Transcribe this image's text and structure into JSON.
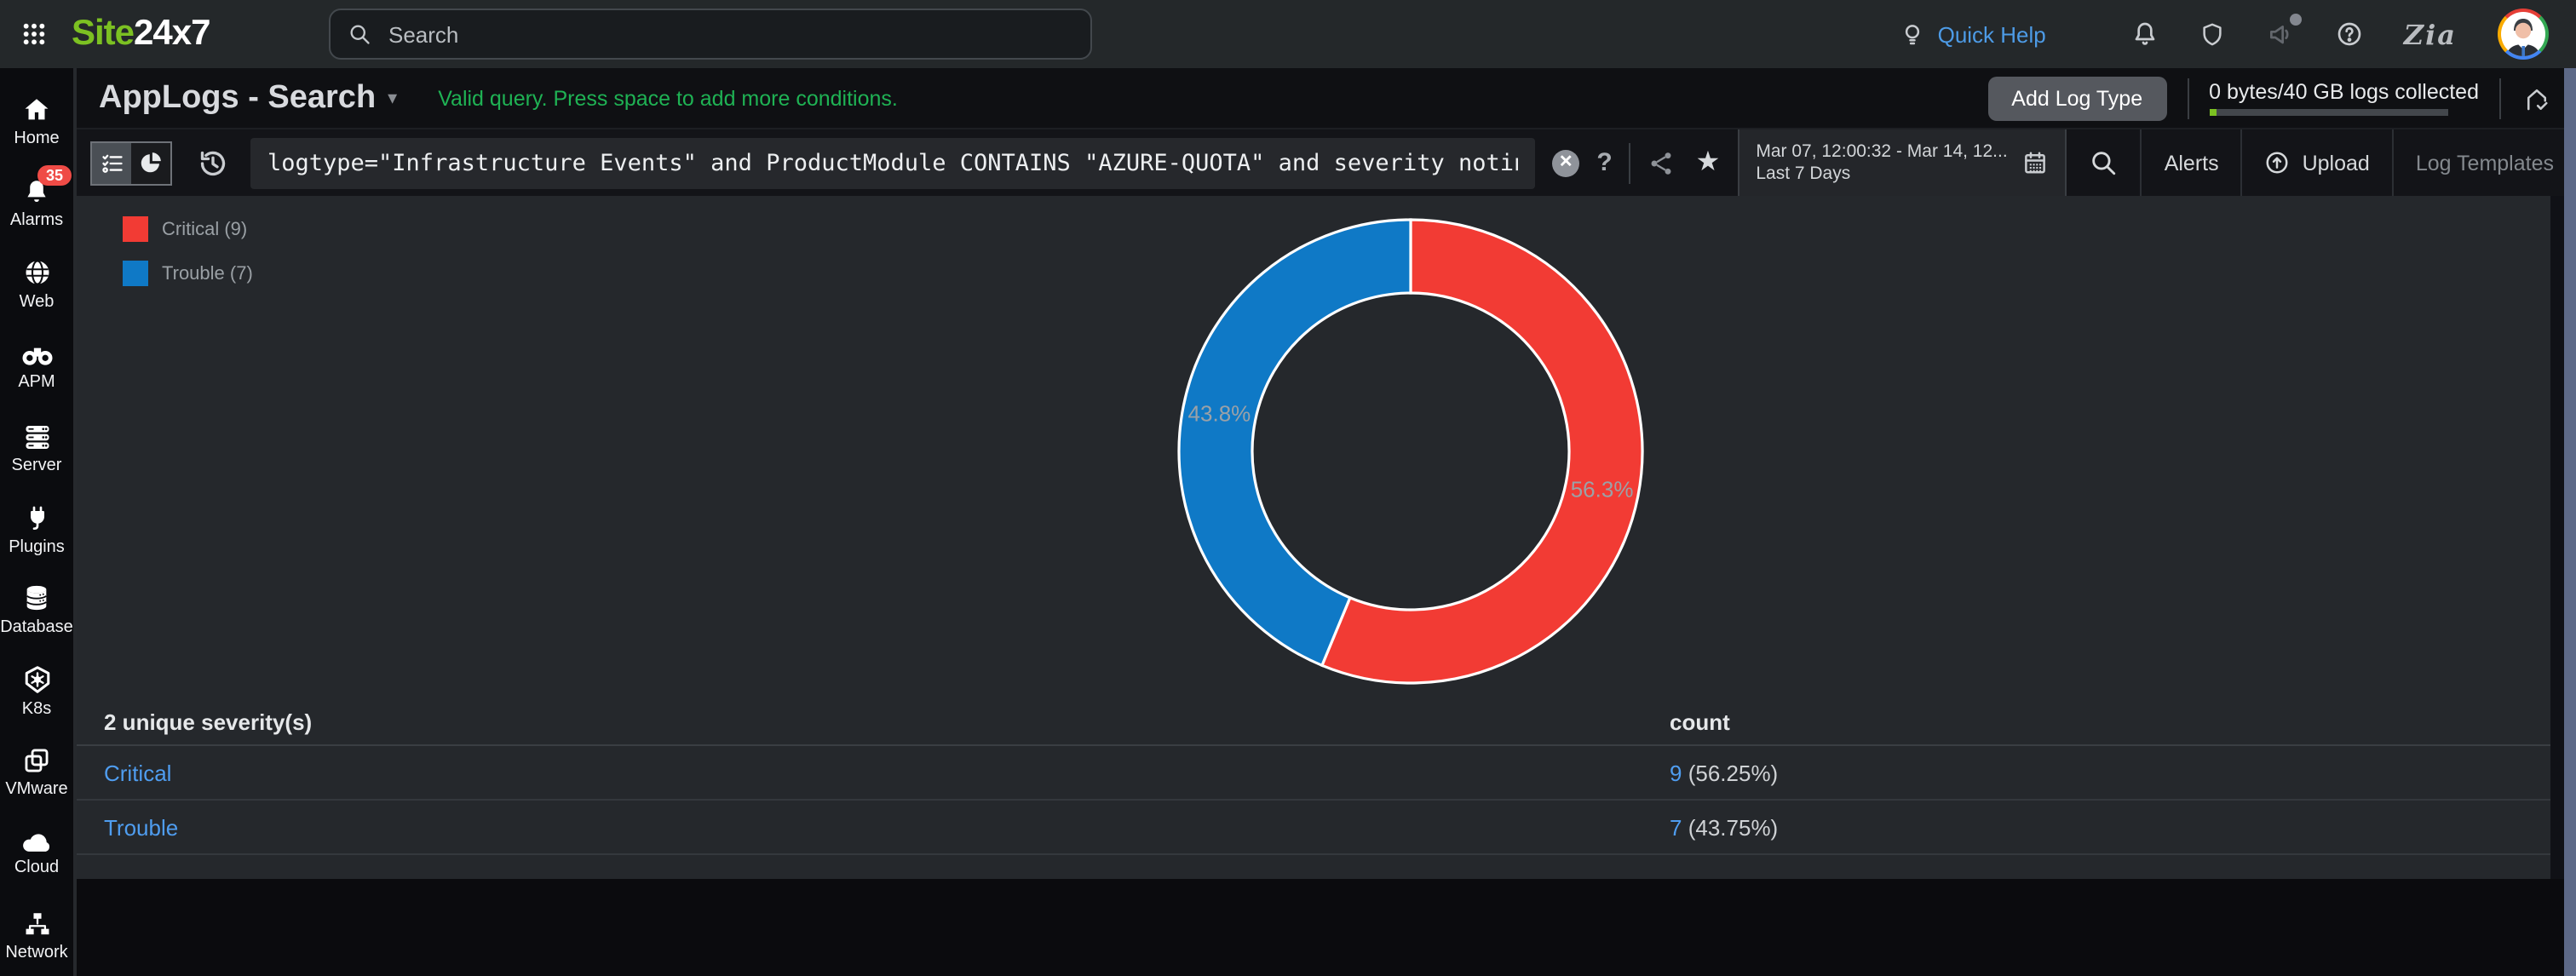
{
  "colors": {
    "accent_green": "#7cc122",
    "status_green": "#1fb254",
    "link_blue": "#4f9df0",
    "quickhelp_blue": "#4d9be6",
    "critical_red": "#f23b34",
    "trouble_blue": "#0f79c6",
    "badge_red": "#ef4b46",
    "scrollbar": "#5d6987"
  },
  "topbar": {
    "logo_part1": "Site",
    "logo_part2": "24x7",
    "search_placeholder": "Search",
    "quick_help_label": "Quick Help",
    "right_icons": [
      "bulb-icon",
      "bell-icon",
      "shield-icon",
      "megaphone-icon",
      "question-icon",
      "zia-icon",
      "avatar"
    ]
  },
  "sidebar": {
    "items": [
      {
        "label": "Home",
        "icon": "home-icon"
      },
      {
        "label": "Alarms",
        "icon": "alarm-bell-icon",
        "badge": "35"
      },
      {
        "label": "Web",
        "icon": "globe-icon"
      },
      {
        "label": "APM",
        "icon": "binoculars-icon"
      },
      {
        "label": "Server",
        "icon": "server-icon"
      },
      {
        "label": "Plugins",
        "icon": "plug-icon"
      },
      {
        "label": "Database",
        "icon": "database-icon"
      },
      {
        "label": "K8s",
        "icon": "kubernetes-icon"
      },
      {
        "label": "VMware",
        "icon": "vmware-icon"
      },
      {
        "label": "Cloud",
        "icon": "cloud-icon"
      },
      {
        "label": "Network",
        "icon": "network-icon"
      }
    ]
  },
  "header": {
    "title": "AppLogs - Search",
    "status_message": "Valid query. Press space to add more conditions.",
    "add_log_type_label": "Add Log Type",
    "usage_text": "0 bytes/40 GB logs collected"
  },
  "querybar": {
    "query": "logtype=\"Infrastructure Events\" and ProductModule CONTAINS \"AZURE-QUOTA\" and severity notin(\"Down\") groupby severity",
    "help_label": "?",
    "date_range": "Mar 07, 12:00:32 - Mar 14, 12...",
    "date_preset": "Last 7 Days",
    "alerts_label": "Alerts",
    "upload_label": "Upload",
    "log_templates_label": "Log Templates"
  },
  "chart_data": {
    "type": "pie",
    "subtype": "donut",
    "title": "",
    "categories": [
      "Critical",
      "Trouble"
    ],
    "values": [
      9,
      7
    ],
    "colors": [
      "#f23b34",
      "#0f79c6"
    ],
    "slice_labels": [
      "56.3%",
      "43.8%"
    ],
    "legend_labels": [
      "Critical (9)",
      "Trouble (7)"
    ],
    "legend_position": "top-left",
    "start_angle_deg": 0,
    "direction": "clockwise"
  },
  "table": {
    "headers": [
      "2 unique severity(s)",
      "count"
    ],
    "rows": [
      {
        "severity": "Critical",
        "count": "9",
        "percent": "(56.25%)"
      },
      {
        "severity": "Trouble",
        "count": "7",
        "percent": "(43.75%)"
      }
    ]
  }
}
